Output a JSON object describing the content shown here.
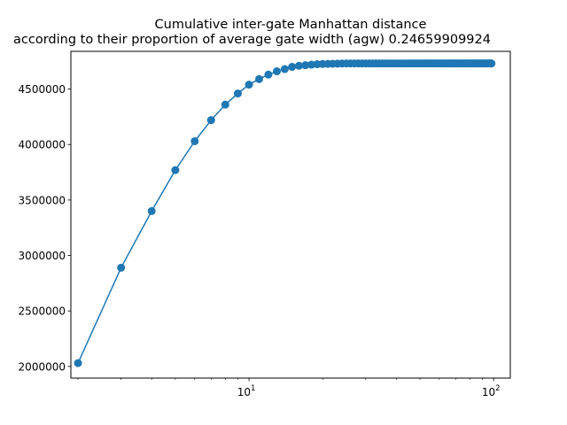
{
  "chart_data": {
    "type": "line",
    "title": "Cumulative inter-gate Manhattan distance",
    "subtitle": "according to their proportion of average gate width (agw) 0.24659909924",
    "xlabel": "",
    "ylabel": "",
    "x_scale": "log",
    "xlim": [
      1.87,
      117
    ],
    "ylim": [
      1895000,
      4840000
    ],
    "grid": false,
    "legend": "none",
    "x_ticks": [
      10,
      100
    ],
    "x_tick_labels": [
      {
        "base": "10",
        "exp": "1"
      },
      {
        "base": "10",
        "exp": "2"
      }
    ],
    "y_ticks": [
      2000000,
      2500000,
      3000000,
      3500000,
      4000000,
      4500000
    ],
    "y_tick_labels": [
      "2000000",
      "2500000",
      "3000000",
      "3500000",
      "4000000",
      "4500000"
    ],
    "series": [
      {
        "color": "#1f77b4",
        "x": [
          2,
          3,
          4,
          5,
          6,
          7,
          8,
          9,
          10,
          11,
          12,
          13,
          14,
          15,
          16,
          17,
          18,
          19,
          20,
          21,
          22,
          23,
          24,
          25,
          26,
          27,
          28,
          29,
          30,
          31,
          32,
          33,
          34,
          35,
          36,
          37,
          38,
          39,
          40,
          41,
          42,
          43,
          44,
          45,
          46,
          47,
          48,
          49,
          50,
          51,
          52,
          53,
          54,
          55,
          56,
          57,
          58,
          59,
          60,
          61,
          62,
          63,
          64,
          65,
          66,
          67,
          68,
          69,
          70,
          71,
          72,
          73,
          74,
          75,
          76,
          77,
          78,
          79,
          80,
          81,
          82,
          83,
          84,
          85,
          86,
          87,
          88,
          89,
          90,
          91,
          92,
          93,
          94,
          95,
          96,
          97,
          98
        ],
        "y": [
          2030000,
          2890000,
          3400000,
          3770000,
          4030000,
          4220000,
          4360000,
          4460000,
          4540000,
          4590000,
          4630000,
          4660000,
          4680000,
          4700000,
          4710000,
          4715000,
          4720000,
          4724000,
          4726000,
          4727000,
          4728000,
          4729000,
          4730000,
          4731000,
          4731000,
          4731000,
          4731000,
          4731000,
          4731000,
          4731000,
          4731000,
          4731000,
          4731000,
          4731000,
          4731000,
          4731000,
          4731000,
          4731000,
          4731000,
          4731000,
          4731000,
          4731000,
          4731000,
          4731000,
          4731000,
          4731000,
          4731000,
          4731000,
          4731000,
          4731000,
          4731000,
          4731000,
          4731000,
          4731000,
          4731000,
          4731000,
          4731000,
          4731000,
          4731000,
          4731000,
          4731000,
          4731000,
          4731000,
          4731000,
          4731000,
          4731000,
          4731000,
          4731000,
          4731000,
          4731000,
          4731000,
          4731000,
          4731000,
          4731000,
          4731000,
          4731000,
          4731000,
          4731000,
          4731000,
          4731000,
          4731000,
          4731000,
          4731000,
          4731000,
          4731000,
          4731000,
          4731000,
          4731000,
          4731000,
          4731000,
          4731000,
          4731000,
          4731000,
          4731000,
          4731000,
          4731000,
          4731000
        ]
      }
    ]
  }
}
